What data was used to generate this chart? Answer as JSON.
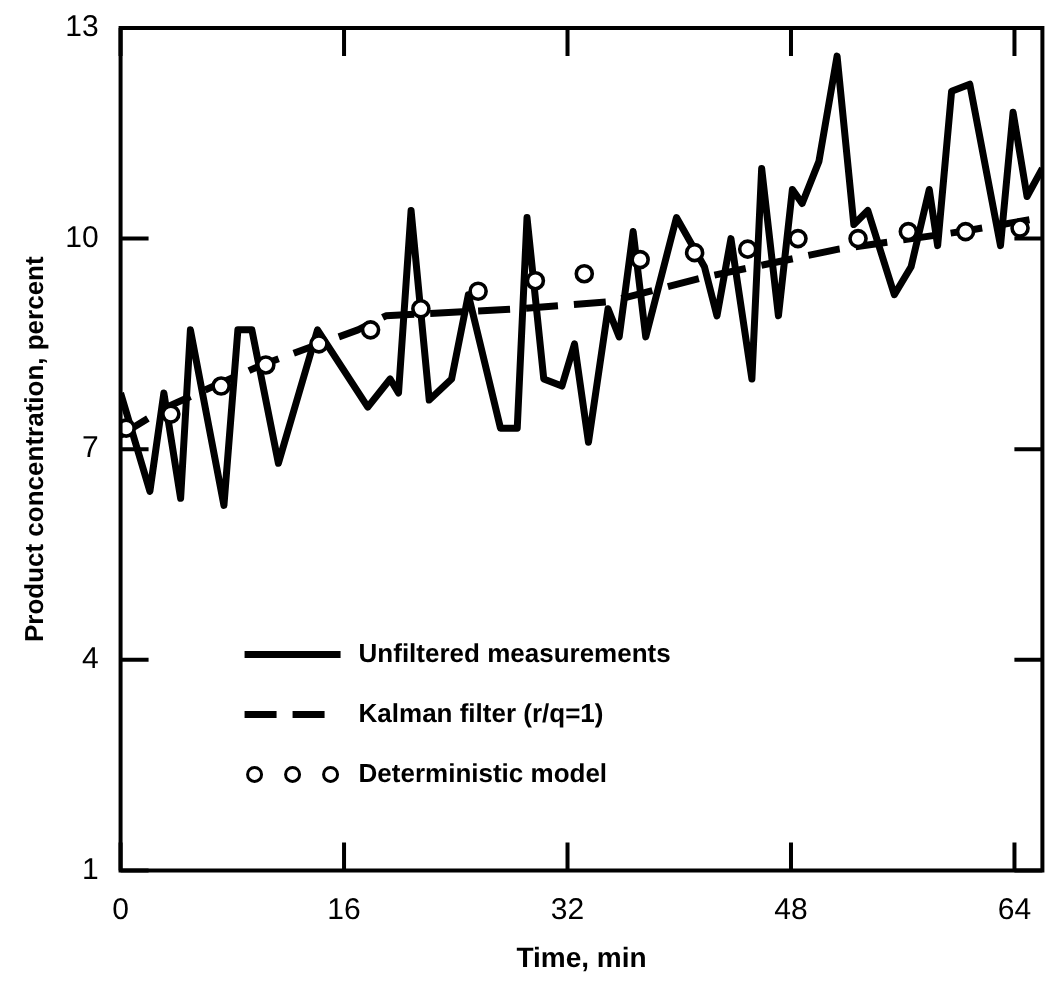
{
  "chart_data": {
    "type": "line",
    "xlabel": "Time, min",
    "ylabel": "Product concentration, percent",
    "xlim": [
      0,
      66
    ],
    "xticks": [
      0,
      16,
      32,
      48,
      64
    ],
    "ylim": [
      1,
      13
    ],
    "yticks": [
      1,
      4,
      7,
      10,
      13
    ],
    "grid": false,
    "legend": "bottom left",
    "series": [
      {
        "name": "Unfiltered measurements",
        "type": "line",
        "color": "#000000",
        "line_style": "solid",
        "marker": "none",
        "x": [
          0,
          2.1,
          3.1,
          4.3,
          5,
          7.4,
          8.4,
          9.4,
          11.3,
          14.1,
          17.7,
          19.3,
          19.9,
          20.8,
          22.1,
          23.7,
          24.9,
          27.2,
          28.4,
          29.1,
          30.3,
          31.6,
          32.5,
          33.5,
          34.9,
          35.7,
          36.7,
          37.6,
          39.8,
          41.8,
          42.7,
          43.7,
          45.2,
          45.9,
          47.1,
          48.1,
          48.8,
          50,
          51.3,
          52.5,
          53.5,
          55.4,
          56.6,
          57.9,
          58.5,
          59.5,
          60.8,
          63,
          63.9,
          64.9,
          66
        ],
        "values": [
          7.8,
          6.4,
          7.8,
          6.3,
          8.7,
          6.2,
          8.7,
          8.7,
          6.8,
          8.7,
          7.6,
          8,
          7.8,
          10.4,
          7.7,
          8,
          9.2,
          7.3,
          7.3,
          10.3,
          8,
          7.9,
          8.5,
          7.1,
          9,
          8.6,
          10.1,
          8.6,
          10.3,
          9.6,
          8.9,
          10,
          8,
          11,
          8.9,
          10.7,
          10.5,
          11.1,
          12.6,
          10.2,
          10.4,
          9.2,
          9.6,
          10.7,
          9.9,
          12.1,
          12.2,
          9.9,
          11.8,
          10.6,
          11
        ]
      },
      {
        "name": "Kalman filter (r/q=1)",
        "type": "line",
        "color": "#000000",
        "line_style": "dashed",
        "marker": "none",
        "x": [
          0,
          3.3,
          10.1,
          17,
          19,
          28.6,
          35,
          41.8,
          51.4,
          60.2,
          66
        ],
        "values": [
          7.2,
          7.6,
          8.2,
          8.7,
          8.9,
          9,
          9.1,
          9.45,
          9.85,
          10.1,
          10.3
        ]
      },
      {
        "name": "Deterministic model",
        "type": "scatter",
        "color": "#000000",
        "marker": "circle",
        "x": [
          0.4,
          3.6,
          7.2,
          10.4,
          14.2,
          17.9,
          21.5,
          25.6,
          29.7,
          33.2,
          37.2,
          41.1,
          44.9,
          48.5,
          52.8,
          56.4,
          60.5,
          64.4
        ],
        "values": [
          7.3,
          7.5,
          7.9,
          8.2,
          8.5,
          8.7,
          9,
          9.25,
          9.4,
          9.5,
          9.7,
          9.8,
          9.85,
          10,
          10,
          10.1,
          10.1,
          10.15
        ]
      }
    ]
  }
}
